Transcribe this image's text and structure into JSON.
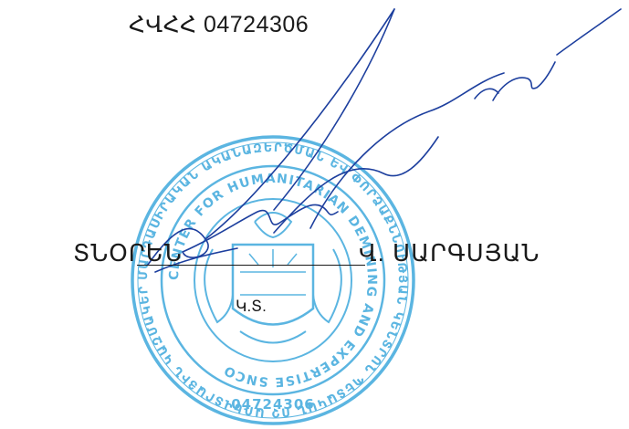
{
  "document": {
    "tax_id": "ՀՎՀՀ 04724306",
    "signatory": {
      "role": "ՏՆՕՐԵՆ",
      "name": "Վ. ՍԱՐԳՍՅԱՆ"
    },
    "seal_place": "Կ.Տ."
  },
  "stamp": {
    "outer_ring_text": "ՄԱՐԴԱՍԻՐԱԿԱՆ ԱԿԱՆԱԶԵՐԾՄԱՆ ԵՎ ՓՈՐՁԱՔՆՆՈՒԹՅԱՆ ԿԵՆՏՐՈՆ ՊԵՏԱԿԱՆ ՈՉ ԱՌԵՎՏՐԱՅԻՆ ԿԱԶՄԱԿԵՐՊՈՒԹՅՈՒՆ",
    "inner_ring_text": "CENTER FOR HUMANITARIAN DEMINING AND EXPERTISE SNCO",
    "number": "04724306",
    "color": "#3fa9dc"
  },
  "colors": {
    "ink": "#1a1a1a",
    "signature": "#1d3f9e"
  }
}
